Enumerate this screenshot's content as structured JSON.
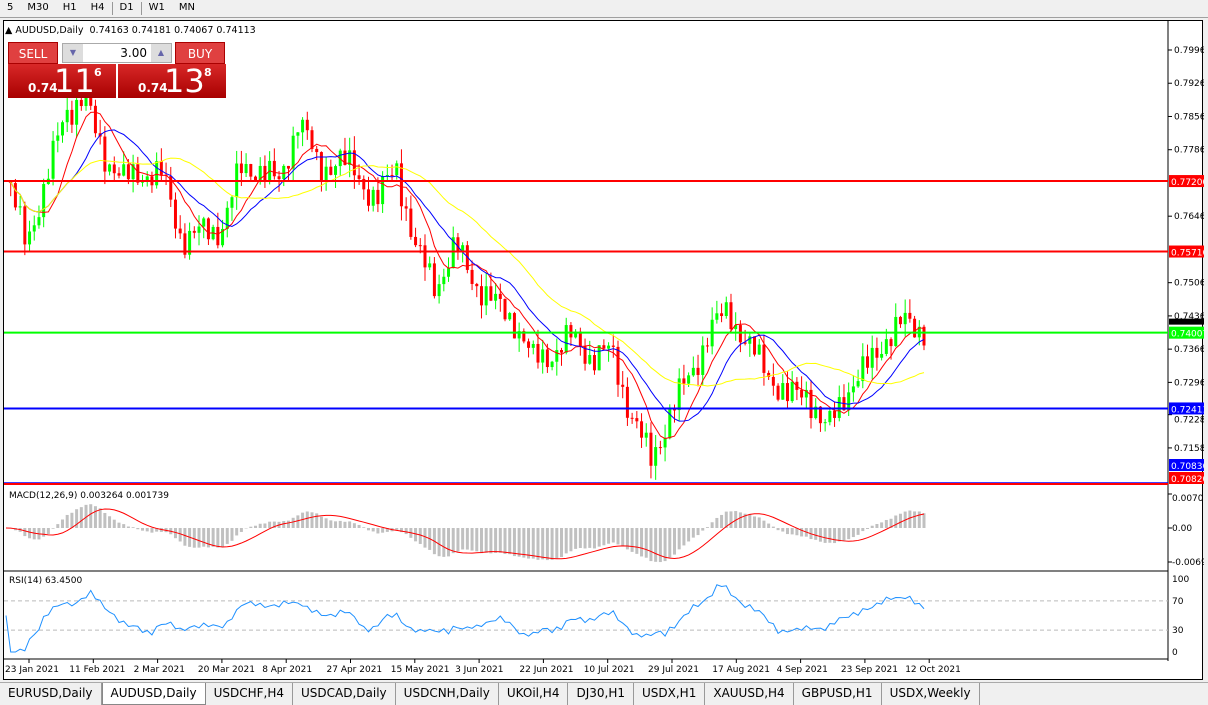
{
  "timeframes": [
    "5",
    "M30",
    "H1",
    "H4",
    "D1",
    "W1",
    "MN"
  ],
  "active_timeframe": "D1",
  "chart": {
    "title": "AUDUSD,Daily",
    "ohlc": "0.74163 0.74181 0.74067 0.74113"
  },
  "trade": {
    "sell": "SELL",
    "buy": "BUY",
    "lot": "3.00",
    "sell_prefix": "0.74",
    "sell_big": "11",
    "sell_sup": "6",
    "buy_prefix": "0.74",
    "buy_big": "13",
    "buy_sup": "8"
  },
  "price_axis": {
    "ticks": [
      "0.79960",
      "0.79260",
      "0.78560",
      "0.77860",
      "0.76460",
      "0.75060",
      "0.74360",
      "0.73660",
      "0.72960",
      "0.72280",
      "0.71580"
    ],
    "current": "0.74113"
  },
  "levels": [
    {
      "value": "0.77200",
      "color": "#ff0000"
    },
    {
      "value": "0.75716",
      "color": "#ff0000"
    },
    {
      "value": "0.74007",
      "color": "#00ff00"
    },
    {
      "value": "0.72411",
      "color": "#0000ff"
    },
    {
      "value": "0.70836",
      "color": "#0000ff"
    },
    {
      "value": "0.70820",
      "color": "#ff0000"
    }
  ],
  "macd": {
    "label": "MACD(12,26,9) 0.003264 0.001739",
    "ticks": [
      "0.007015",
      "0.00",
      "-0.006923"
    ]
  },
  "rsi": {
    "label": "RSI(14) 63.4500",
    "ticks": [
      "100",
      "70",
      "30",
      "0"
    ]
  },
  "dates": [
    "23 Jan 2021",
    "11 Feb 2021",
    "2 Mar 2021",
    "20 Mar 2021",
    "8 Apr 2021",
    "27 Apr 2021",
    "15 May 2021",
    "3 Jun 2021",
    "22 Jun 2021",
    "10 Jul 2021",
    "29 Jul 2021",
    "17 Aug 2021",
    "4 Sep 2021",
    "23 Sep 2021",
    "12 Oct 2021"
  ],
  "tabs": [
    "EURUSD,Daily",
    "AUDUSD,Daily",
    "USDCHF,H4",
    "USDCAD,Daily",
    "USDCNH,Daily",
    "UKOil,H4",
    "DJ30,H1",
    "USDX,H1",
    "XAUUSD,H4",
    "GBPUSD,H1",
    "USDX,Weekly"
  ],
  "active_tab": "AUDUSD,Daily",
  "chart_data": {
    "type": "candlestick",
    "approx_closes": [
      0.772,
      0.76,
      0.77,
      0.787,
      0.789,
      0.778,
      0.772,
      0.774,
      0.773,
      0.76,
      0.761,
      0.762,
      0.774,
      0.775,
      0.771,
      0.786,
      0.774,
      0.777,
      0.773,
      0.768,
      0.775,
      0.757,
      0.75,
      0.758,
      0.751,
      0.746,
      0.743,
      0.734,
      0.736,
      0.739,
      0.735,
      0.736,
      0.723,
      0.713,
      0.723,
      0.731,
      0.74,
      0.745,
      0.737,
      0.732,
      0.726,
      0.728,
      0.719,
      0.728,
      0.732,
      0.739,
      0.742,
      0.741
    ],
    "ylim": [
      0.707815,
      0.8035
    ],
    "colors": {
      "up": "#00ff00",
      "down": "#ff0000",
      "ma_fast": "#ff0000",
      "ma_mid": "#0000ff",
      "ma_slow": "#ffff00"
    }
  }
}
